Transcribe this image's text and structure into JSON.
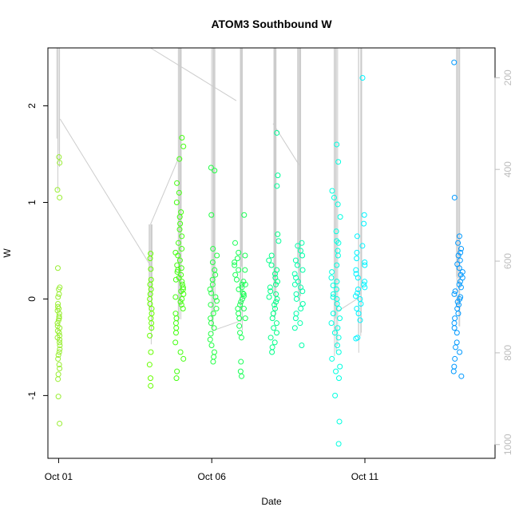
{
  "chart_data": {
    "type": "scatter",
    "title": "ATOM3 Southbound W",
    "xlabel": "Date",
    "ylabel": "W",
    "x_ticks": [
      "Oct 01",
      "Oct 06",
      "Oct 11"
    ],
    "x_tick_days": [
      1,
      6,
      11
    ],
    "xlim_days": [
      0.65,
      15.25
    ],
    "ylim": [
      -1.65,
      2.6
    ],
    "y_ticks": [
      -1,
      0,
      1,
      2
    ],
    "y_ticks_right": [
      200,
      400,
      600,
      800,
      1000
    ],
    "ylim_right": [
      1030,
      135
    ],
    "right_axis_color": "#bdbdbd",
    "grid": false,
    "clusters": [
      {
        "day": 1.0,
        "width": 0.04,
        "color": "#99ee33",
        "points": [
          1.47,
          1.41,
          1.13,
          1.05,
          0.32,
          0.12,
          0.1,
          0.05,
          0.02,
          -0.05,
          -0.08,
          -0.1,
          -0.12,
          -0.15,
          -0.18,
          -0.2,
          -0.22,
          -0.25,
          -0.28,
          -0.3,
          -0.33,
          -0.35,
          -0.38,
          -0.4,
          -0.42,
          -0.45,
          -0.48,
          -0.52,
          -0.55,
          -0.58,
          -0.62,
          -0.68,
          -0.72,
          -0.78,
          -0.83,
          -1.01,
          -1.29
        ]
      },
      {
        "day": 4.0,
        "width": 0.04,
        "color": "#66ff00",
        "points": [
          0.47,
          0.42,
          0.31,
          0.2,
          0.15,
          0.1,
          0.05,
          0.0,
          -0.05,
          -0.1,
          -0.15,
          -0.2,
          -0.25,
          -0.3,
          -0.38,
          -0.55,
          -0.68,
          -0.82,
          -0.9
        ]
      },
      {
        "day": 4.95,
        "width": 0.14,
        "color": "#44ff10",
        "points": [
          1.67,
          1.58,
          1.45,
          1.2,
          1.1,
          1.0,
          0.9,
          0.85,
          0.78,
          0.72,
          0.65,
          0.58,
          0.52,
          0.48,
          0.45,
          0.4,
          0.35,
          0.32,
          0.3,
          0.28,
          0.25,
          0.22,
          0.2,
          0.18,
          0.15,
          0.12,
          0.1,
          0.08,
          0.05,
          0.02,
          0.0,
          -0.03,
          -0.06,
          -0.1,
          -0.15,
          -0.2,
          -0.25,
          -0.3,
          -0.35,
          -0.45,
          -0.55,
          -0.62,
          -0.75,
          -0.82
        ]
      },
      {
        "day": 6.05,
        "width": 0.12,
        "color": "#22ff44",
        "points": [
          1.36,
          1.33,
          0.87,
          0.52,
          0.45,
          0.38,
          0.3,
          0.25,
          0.2,
          0.15,
          0.1,
          0.06,
          0.02,
          -0.02,
          -0.06,
          -0.1,
          -0.15,
          -0.2,
          -0.25,
          -0.3,
          -0.36,
          -0.42,
          -0.48,
          -0.55,
          -0.6,
          -0.65
        ]
      },
      {
        "day": 6.9,
        "width": 0.16,
        "color": "#18ff55",
        "points": [
          0.87,
          0.58,
          0.48,
          0.42,
          0.38,
          0.35,
          0.3,
          0.25,
          0.2,
          0.18,
          0.15,
          0.12,
          0.1,
          0.06,
          0.03,
          0.0,
          -0.03,
          -0.06,
          -0.1,
          -0.15,
          -0.2,
          -0.28,
          -0.35,
          -0.4,
          -0.65,
          -0.75,
          -0.8
        ]
      },
      {
        "day": 7.05,
        "width": 0.05,
        "color": "#18ff55",
        "points": [
          0.45,
          0.3,
          0.15,
          0.05,
          -0.1,
          -0.2
        ]
      },
      {
        "day": 8.0,
        "width": 0.16,
        "color": "#00ff88",
        "points": [
          0.67,
          0.45,
          0.4,
          0.35,
          0.3,
          0.26,
          0.22,
          0.18,
          0.15,
          0.12,
          0.08,
          0.05,
          0.02,
          0.0,
          -0.03,
          -0.06,
          -0.1,
          -0.15,
          -0.2,
          -0.25,
          -0.3,
          -0.35,
          -0.4,
          -0.45,
          -0.5,
          -0.55
        ]
      },
      {
        "day": 8.15,
        "width": 0.04,
        "color": "#00ff99",
        "points": [
          1.72,
          1.28,
          1.17,
          0.6
        ]
      },
      {
        "day": 8.85,
        "width": 0.14,
        "color": "#00ffaa",
        "points": [
          0.58,
          0.55,
          0.5,
          0.45,
          0.4,
          0.35,
          0.3,
          0.26,
          0.22,
          0.18,
          0.15,
          0.12,
          0.08,
          0.05,
          0.0,
          -0.05,
          -0.1,
          -0.15,
          -0.2,
          -0.25,
          -0.3,
          -0.48
        ]
      },
      {
        "day": 10.05,
        "width": 0.16,
        "color": "#00ffe0",
        "points": [
          1.6,
          1.42,
          1.12,
          1.05,
          0.98,
          0.85,
          0.7,
          0.6,
          0.58,
          0.5,
          0.45,
          0.35,
          0.28,
          0.22,
          0.18,
          0.14,
          0.1,
          0.05,
          0.02,
          0.0,
          -0.05,
          -0.1,
          -0.15,
          -0.2,
          -0.25,
          -0.3,
          -0.35,
          -0.4,
          -0.48,
          -0.55,
          -0.62,
          -0.7,
          -0.75,
          -0.82,
          -1.0,
          -1.27,
          -1.5
        ]
      },
      {
        "day": 10.85,
        "width": 0.16,
        "color": "#00f4ff",
        "points": [
          2.29,
          0.87,
          0.78,
          0.65,
          0.55,
          0.48,
          0.42,
          0.38,
          0.35,
          0.3,
          0.26,
          0.22,
          0.18,
          0.15,
          0.12,
          0.1,
          0.06,
          0.03,
          0.0,
          -0.05,
          -0.1,
          -0.15,
          -0.22,
          -0.4,
          -0.41
        ]
      },
      {
        "day": 14.05,
        "width": 0.15,
        "color": "#0099ff",
        "points": [
          2.45,
          1.05,
          0.65,
          0.58,
          0.52,
          0.48,
          0.45,
          0.4,
          0.36,
          0.32,
          0.28,
          0.25,
          0.22,
          0.18,
          0.15,
          0.12,
          0.08,
          0.05,
          0.02,
          0.0,
          -0.03,
          -0.06,
          -0.1,
          -0.15,
          -0.2,
          -0.25,
          -0.3,
          -0.35,
          -0.45,
          -0.5,
          -0.55,
          -0.62,
          -0.7,
          -0.75,
          -0.8
        ]
      }
    ],
    "depth_trace": {
      "color": "#cccccc",
      "vertical_bursts": [
        {
          "day": 1.0,
          "from": 135,
          "to": 480
        },
        {
          "day": 4.0,
          "from": 520,
          "to": 790
        },
        {
          "day": 4.95,
          "from": 135,
          "to": 780
        },
        {
          "day": 6.05,
          "from": 135,
          "to": 790
        },
        {
          "day": 6.95,
          "from": 135,
          "to": 760
        },
        {
          "day": 8.05,
          "from": 135,
          "to": 760
        },
        {
          "day": 8.85,
          "from": 135,
          "to": 740
        },
        {
          "day": 10.05,
          "from": 135,
          "to": 820
        },
        {
          "day": 10.85,
          "from": 135,
          "to": 800
        },
        {
          "day": 14.05,
          "from": 135,
          "to": 780
        }
      ],
      "connectors": [
        {
          "d1": 1.05,
          "v1": 290,
          "d2": 4.0,
          "v2": 610
        },
        {
          "d1": 4.0,
          "v1": 520,
          "d2": 4.95,
          "v2": 370
        },
        {
          "d1": 4.0,
          "v1": 135,
          "d2": 6.8,
          "v2": 250
        },
        {
          "d1": 6.1,
          "v1": 750,
          "d2": 6.95,
          "v2": 730
        },
        {
          "d1": 8.0,
          "v1": 300,
          "d2": 8.85,
          "v2": 390
        },
        {
          "d1": 10.1,
          "v1": 710,
          "d2": 10.8,
          "v2": 680
        }
      ]
    }
  }
}
